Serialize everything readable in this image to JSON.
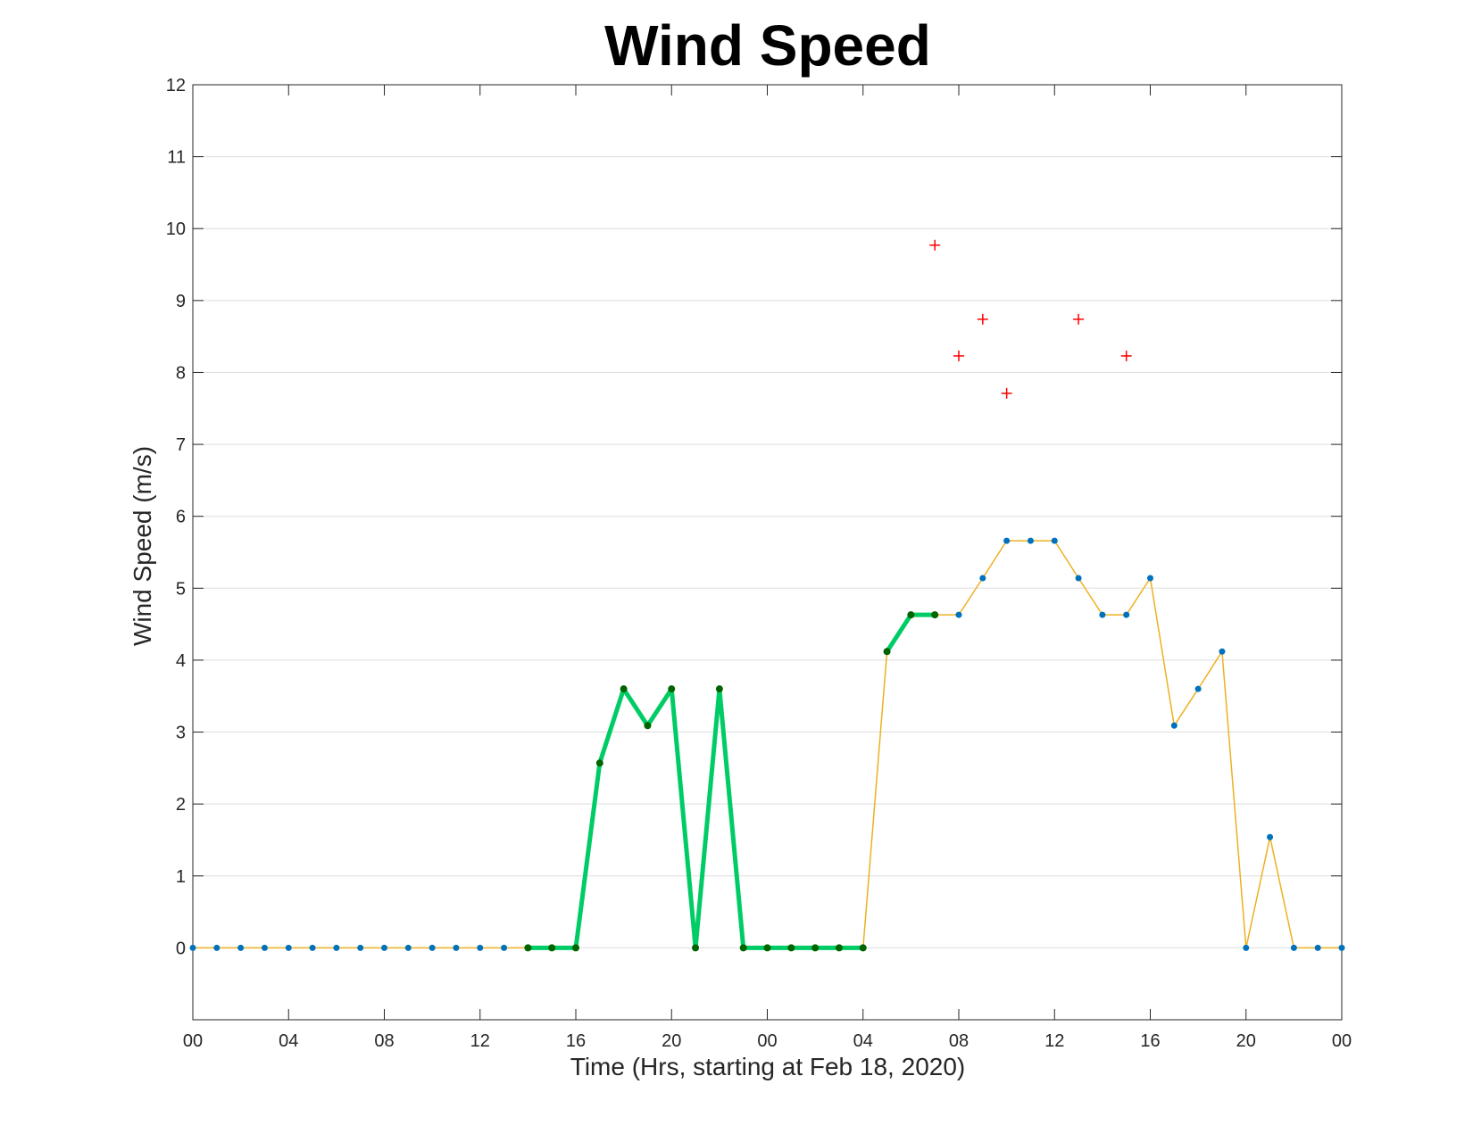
{
  "chart_data": {
    "type": "line",
    "title": "Wind Speed",
    "xlabel": "Time (Hrs, starting at Feb 18, 2020)",
    "ylabel": "Wind Speed (m/s)",
    "xlim": [
      0,
      48
    ],
    "ylim": [
      -1,
      12
    ],
    "x_ticks": [
      0,
      4,
      8,
      12,
      16,
      20,
      24,
      28,
      32,
      36,
      40,
      44,
      48
    ],
    "x_tick_labels": [
      "00",
      "04",
      "08",
      "12",
      "16",
      "20",
      "00",
      "04",
      "08",
      "12",
      "16",
      "20",
      "00"
    ],
    "y_ticks": [
      0,
      1,
      2,
      3,
      4,
      5,
      6,
      7,
      8,
      9,
      10,
      11,
      12
    ],
    "y_tick_labels": [
      "0",
      "1",
      "2",
      "3",
      "4",
      "5",
      "6",
      "7",
      "8",
      "9",
      "10",
      "11",
      "12"
    ],
    "grid": "horizontal",
    "series": [
      {
        "style": "thin line with dot markers",
        "color": "#EDB120",
        "marker_color": "#0072BD",
        "x": [
          0,
          1,
          2,
          3,
          4,
          5,
          6,
          7,
          8,
          9,
          10,
          11,
          12,
          13,
          14,
          15,
          16,
          17,
          18,
          19,
          20,
          21,
          22,
          23,
          24,
          25,
          26,
          27,
          28,
          29,
          30,
          31,
          32,
          33,
          34,
          35,
          36,
          37,
          38,
          39,
          40,
          41,
          42,
          43,
          44,
          45,
          46,
          47,
          48
        ],
        "values": [
          0,
          0,
          0,
          0,
          0,
          0,
          0,
          0,
          0,
          0,
          0,
          0,
          0,
          0,
          0,
          0,
          0,
          2.57,
          3.6,
          3.09,
          3.6,
          0,
          3.6,
          0,
          0,
          0,
          0,
          0,
          0,
          4.12,
          4.63,
          4.63,
          4.63,
          5.14,
          5.66,
          5.66,
          5.66,
          5.14,
          4.63,
          4.63,
          5.14,
          3.09,
          3.6,
          4.12,
          0,
          1.54,
          0,
          0,
          0
        ]
      },
      {
        "style": "thick line with dot markers",
        "color": "#00CC66",
        "marker_color": "#006400",
        "segments": [
          {
            "x": [
              14,
              15,
              16,
              17,
              18,
              19,
              20,
              21,
              22,
              23,
              24,
              25,
              26,
              27,
              28
            ],
            "values": [
              0,
              0,
              0,
              2.57,
              3.6,
              3.09,
              3.6,
              0,
              3.6,
              0,
              0,
              0,
              0,
              0,
              0
            ]
          },
          {
            "x": [
              29,
              30,
              31
            ],
            "values": [
              4.12,
              4.63,
              4.63
            ]
          }
        ]
      },
      {
        "style": "plus markers",
        "color": "#FF0000",
        "x": [
          31,
          32,
          33,
          34,
          37,
          39
        ],
        "values": [
          9.77,
          8.23,
          8.74,
          7.71,
          8.74,
          8.23
        ]
      }
    ]
  }
}
